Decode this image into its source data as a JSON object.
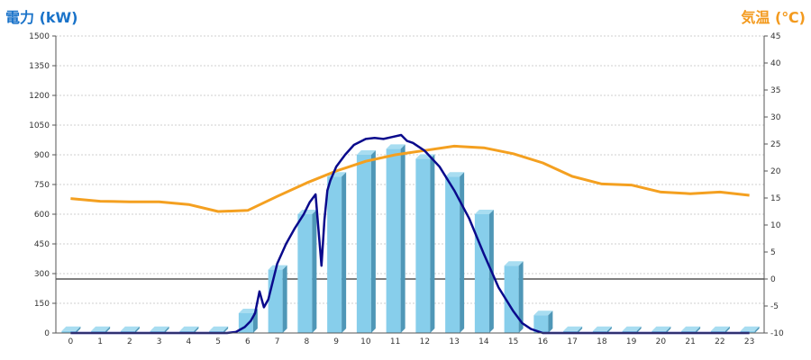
{
  "colors": {
    "bar_front": "#87CEEB",
    "bar_side": "#4F97B7",
    "bar_top": "#A8DDF1",
    "power_line": "#0a0a8c",
    "temp_line": "#F4A020",
    "left_title": "#1a73c9",
    "right_title": "#f39a1e",
    "grid": "#cfcfcf"
  },
  "chart_data": {
    "type": "bar",
    "left_axis_title": "電力 (kW)",
    "right_axis_title": "気温 (℃)",
    "categories": [
      "0",
      "1",
      "2",
      "3",
      "4",
      "5",
      "6",
      "7",
      "8",
      "9",
      "10",
      "11",
      "12",
      "13",
      "14",
      "15",
      "16",
      "17",
      "18",
      "19",
      "20",
      "21",
      "22",
      "23"
    ],
    "y_left": {
      "min": 0,
      "max": 1500,
      "ticks": [
        0,
        150,
        300,
        450,
        600,
        750,
        900,
        1050,
        1200,
        1350,
        1500
      ]
    },
    "y_right": {
      "min": -10,
      "max": 45,
      "ticks": [
        -10,
        -5,
        0,
        5,
        10,
        15,
        20,
        25,
        30,
        35,
        40,
        45
      ]
    },
    "grid": true,
    "series": [
      {
        "kind": "bar",
        "axis": "left",
        "values": [
          10,
          10,
          10,
          10,
          10,
          10,
          100,
          320,
          600,
          790,
          900,
          930,
          880,
          790,
          600,
          340,
          90,
          10,
          10,
          10,
          10,
          10,
          10,
          10
        ]
      },
      {
        "kind": "line",
        "axis": "left",
        "x": [
          0,
          1,
          2,
          3,
          4,
          5,
          5.3,
          5.6,
          5.9,
          6.1,
          6.25,
          6.4,
          6.55,
          6.7,
          7,
          7.3,
          7.6,
          7.9,
          8.1,
          8.3,
          8.5,
          8.6,
          8.7,
          8.8,
          9,
          9.3,
          9.6,
          10,
          10.3,
          10.6,
          10.9,
          11.2,
          11.4,
          11.6,
          11.8,
          12,
          12.5,
          13,
          13.5,
          14,
          14.5,
          15,
          15.3,
          15.6,
          16,
          16.3,
          16.5,
          17,
          18,
          19,
          20,
          21,
          22,
          23
        ],
        "values": [
          0,
          0,
          0,
          0,
          0,
          0,
          0,
          5,
          30,
          60,
          100,
          210,
          130,
          170,
          350,
          450,
          530,
          600,
          660,
          700,
          340,
          570,
          720,
          770,
          840,
          900,
          950,
          980,
          985,
          980,
          990,
          1000,
          970,
          960,
          940,
          920,
          840,
          720,
          580,
          400,
          230,
          110,
          50,
          20,
          0,
          0,
          0,
          0,
          0,
          0,
          0,
          0,
          0,
          0
        ]
      },
      {
        "kind": "line",
        "axis": "right",
        "values": [
          14.9,
          14.4,
          14.3,
          14.3,
          13.8,
          12.5,
          12.7,
          15.3,
          17.8,
          20.0,
          21.8,
          23.0,
          23.8,
          24.6,
          24.3,
          23.2,
          21.5,
          19.0,
          17.6,
          17.4,
          16.1,
          15.8,
          16.1,
          15.5
        ]
      }
    ]
  }
}
